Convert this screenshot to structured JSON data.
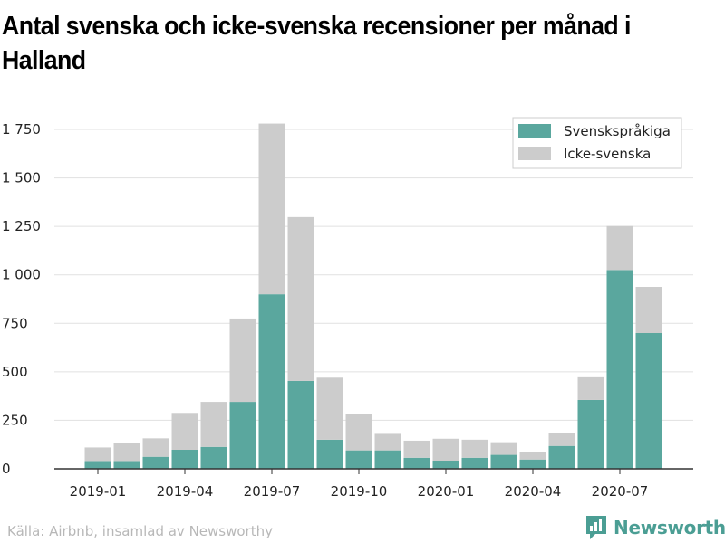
{
  "title": "Antal svenska och icke-svenska recensioner per månad i Halland",
  "source": "Källa: Airbnb, insamlad av Newsworthy",
  "brand": {
    "name": "Newsworthy",
    "logo_icon": "bar-chart-logo-icon"
  },
  "colors": {
    "svenska": "#5aa79e",
    "icke": "#cccccc",
    "axis": "#333333",
    "grid": "#e1e1e1"
  },
  "chart_data": {
    "type": "bar",
    "stacked": true,
    "categories": [
      "2019-01",
      "2019-02",
      "2019-03",
      "2019-04",
      "2019-05",
      "2019-06",
      "2019-07",
      "2019-08",
      "2019-09",
      "2019-10",
      "2019-11",
      "2019-12",
      "2020-01",
      "2020-02",
      "2020-03",
      "2020-04",
      "2020-05",
      "2020-06",
      "2020-07",
      "2020-08"
    ],
    "x_tick_labels": [
      "2019-01",
      "2019-04",
      "2019-07",
      "2019-10",
      "2020-01",
      "2020-04",
      "2020-07"
    ],
    "series": [
      {
        "name": "Svenskspråkiga",
        "color": "#5aa79e",
        "values": [
          40,
          40,
          62,
          98,
          113,
          345,
          900,
          453,
          150,
          95,
          95,
          57,
          42,
          57,
          72,
          48,
          118,
          355,
          1025,
          700
        ]
      },
      {
        "name": "Icke-svenska",
        "color": "#cccccc",
        "values": [
          70,
          95,
          95,
          190,
          232,
          430,
          880,
          845,
          320,
          185,
          85,
          88,
          113,
          93,
          65,
          37,
          65,
          117,
          227,
          238
        ]
      }
    ],
    "ylim": [
      0,
      1800
    ],
    "y_ticks": [
      0,
      250,
      500,
      750,
      1000,
      1250,
      1500,
      1750
    ],
    "y_tick_labels": [
      "0",
      "250",
      "500",
      "750",
      "1 000",
      "1 250",
      "1 500",
      "1 750"
    ],
    "grid": true,
    "legend_position": "top-right"
  }
}
